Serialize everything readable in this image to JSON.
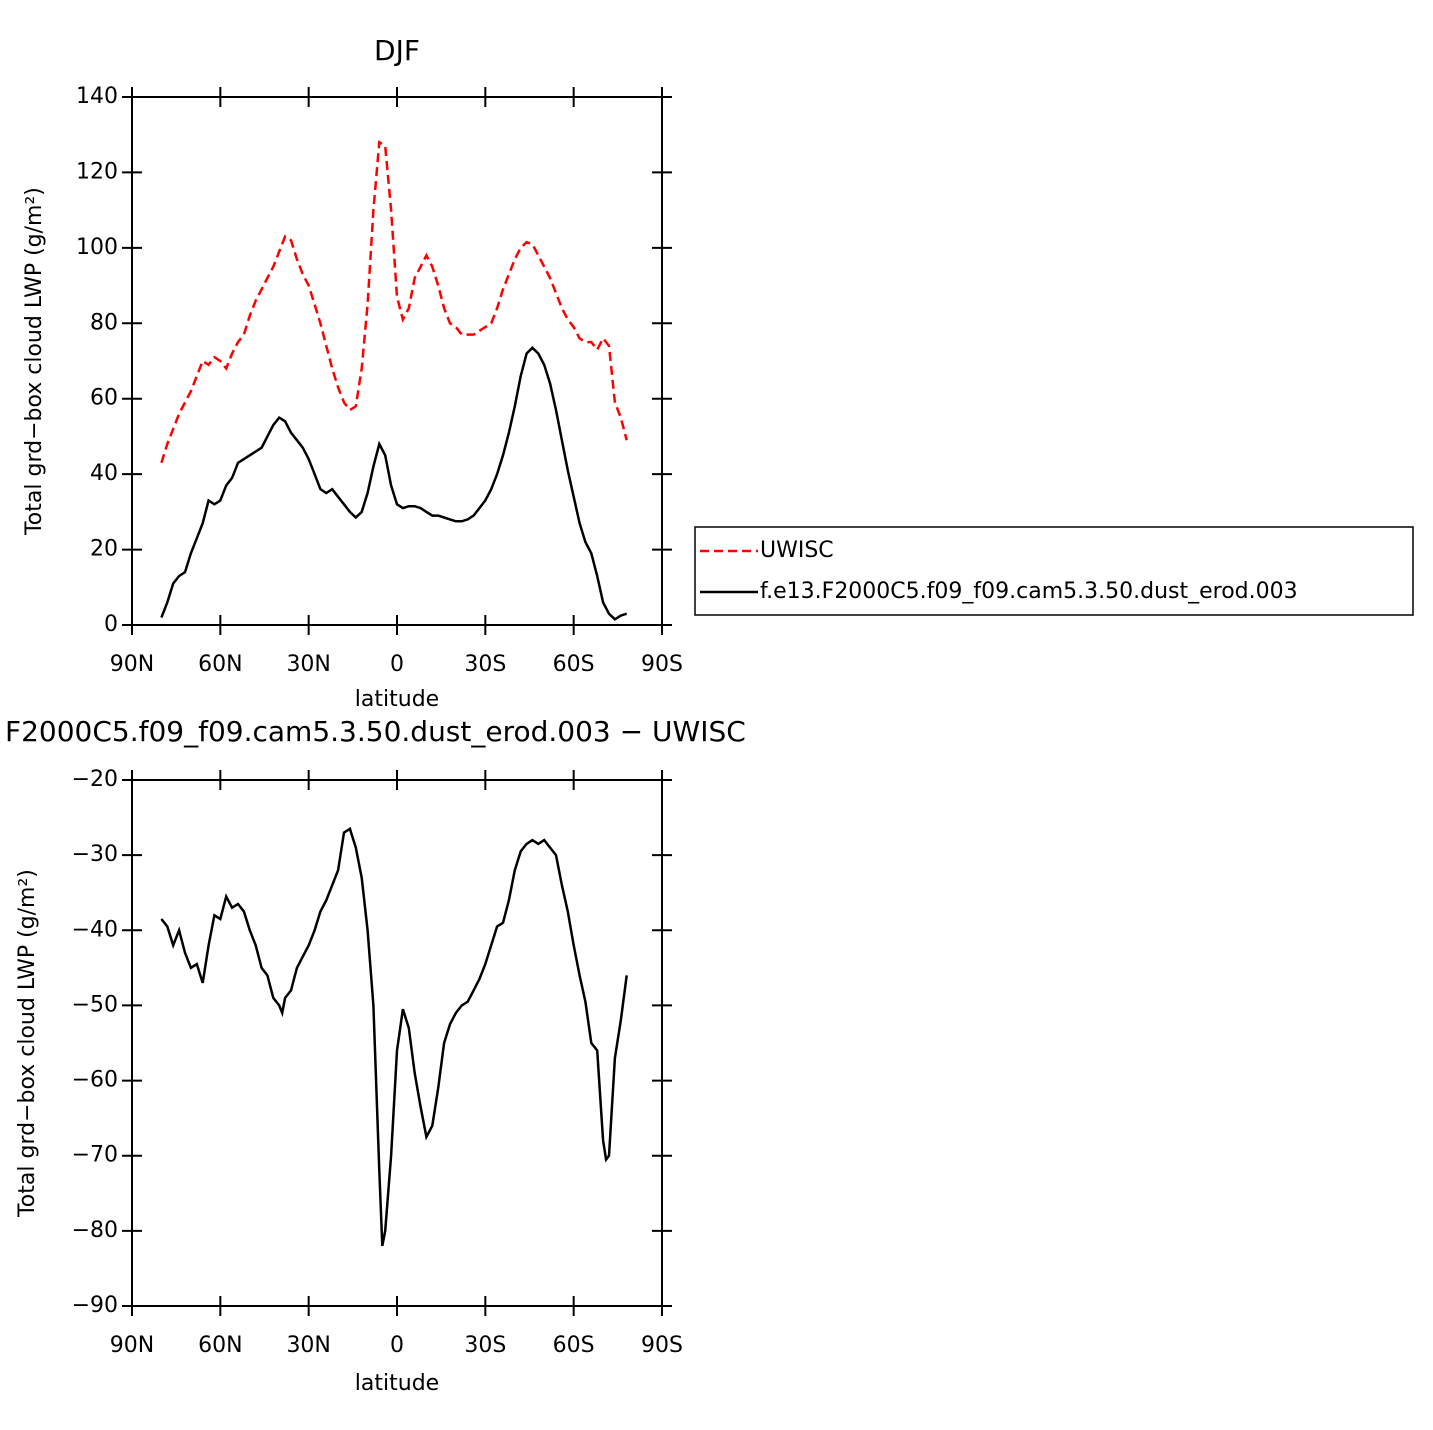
{
  "chart_data": [
    {
      "type": "line",
      "title": "DJF",
      "xlabel": "latitude",
      "ylabel": "Total grd−box cloud LWP (g/m²)",
      "xlim": [
        90,
        -90
      ],
      "xticks": [
        {
          "value": 90,
          "label": "90N"
        },
        {
          "value": 60,
          "label": "60N"
        },
        {
          "value": 30,
          "label": "30N"
        },
        0,
        {
          "value": -30,
          "label": "30S"
        },
        {
          "value": -60,
          "label": "60S"
        },
        {
          "value": -90,
          "label": "90S"
        }
      ],
      "ylim": [
        0,
        140
      ],
      "yticks": [
        0,
        20,
        40,
        60,
        80,
        100,
        120,
        140
      ],
      "x": [
        80,
        78,
        76,
        74,
        72,
        70,
        68,
        66,
        64,
        62,
        60,
        58,
        56,
        54,
        52,
        50,
        48,
        46,
        44,
        42,
        40,
        38,
        36,
        34,
        32,
        30,
        28,
        26,
        24,
        22,
        20,
        18,
        16,
        14,
        12,
        10,
        8,
        6,
        4,
        2,
        0,
        -2,
        -4,
        -6,
        -8,
        -10,
        -12,
        -14,
        -16,
        -18,
        -20,
        -22,
        -24,
        -26,
        -28,
        -30,
        -32,
        -34,
        -36,
        -38,
        -40,
        -42,
        -44,
        -46,
        -48,
        -50,
        -52,
        -54,
        -56,
        -58,
        -60,
        -62,
        -64,
        -66,
        -68,
        -70,
        -72,
        -74,
        -76,
        -78
      ],
      "series": [
        {
          "name": "UWISC",
          "color": "#ff0000",
          "dash": true,
          "values": [
            43,
            48,
            52,
            56,
            59,
            62,
            66,
            70,
            69,
            71,
            70,
            68,
            72,
            75,
            77,
            82,
            86,
            89,
            92,
            95,
            99,
            103,
            102,
            97,
            93,
            90,
            85,
            80,
            74,
            68,
            63,
            59,
            57,
            58,
            68,
            85,
            110,
            128,
            127,
            110,
            87,
            81,
            84,
            92,
            95,
            98,
            95,
            90,
            84,
            80,
            79,
            77,
            77,
            77,
            78,
            79,
            80,
            84,
            89,
            93,
            97,
            100,
            101.5,
            101,
            98,
            95,
            92,
            88,
            84,
            81,
            79,
            76,
            75,
            75,
            73,
            76,
            74,
            59,
            55,
            49
          ]
        },
        {
          "name": "f.e13.F2000C5.f09_f09.cam5.3.50.dust_erod.003",
          "color": "#000000",
          "dash": false,
          "values": [
            2,
            6,
            11,
            13,
            14,
            19,
            23,
            27,
            33,
            32,
            33,
            37,
            39,
            43,
            44,
            45,
            46,
            47,
            50,
            53,
            55,
            54,
            51,
            49,
            47,
            44,
            40,
            36,
            35,
            36,
            34,
            32,
            30,
            28.5,
            30,
            35,
            42,
            48,
            45,
            37,
            32,
            31,
            31.5,
            31.5,
            31,
            30,
            29,
            29,
            28.5,
            28,
            27.5,
            27.5,
            28,
            29,
            31,
            33,
            36,
            40,
            45,
            51,
            58,
            66,
            72,
            73.5,
            72,
            69,
            64,
            57,
            49,
            41,
            34,
            27,
            22,
            19,
            13,
            6,
            3,
            1.5,
            2.5,
            3
          ]
        }
      ]
    },
    {
      "type": "line",
      "title": "F2000C5.f09_f09.cam5.3.50.dust_erod.003 − UWISC",
      "xlabel": "latitude",
      "ylabel": "Total grd−box cloud LWP (g/m²)",
      "xlim": [
        90,
        -90
      ],
      "xticks": [
        {
          "value": 90,
          "label": "90N"
        },
        {
          "value": 60,
          "label": "60N"
        },
        {
          "value": 30,
          "label": "30N"
        },
        0,
        {
          "value": -30,
          "label": "30S"
        },
        {
          "value": -60,
          "label": "60S"
        },
        {
          "value": -90,
          "label": "90S"
        }
      ],
      "ylim": [
        -90,
        -20
      ],
      "yticks": [
        {
          "value": -90,
          "label": "−90"
        },
        {
          "value": -80,
          "label": "−80"
        },
        {
          "value": -70,
          "label": "−70"
        },
        {
          "value": -60,
          "label": "−60"
        },
        {
          "value": -50,
          "label": "−50"
        },
        {
          "value": -40,
          "label": "−40"
        },
        {
          "value": -30,
          "label": "−30"
        },
        {
          "value": -20,
          "label": "−20"
        }
      ],
      "x": [
        80,
        78,
        76,
        74,
        72,
        70,
        68,
        66,
        64,
        62,
        60,
        58,
        56,
        54,
        52,
        50,
        48,
        46,
        44,
        42,
        40,
        39,
        38,
        36,
        34,
        32,
        30,
        28,
        26,
        24,
        22,
        20,
        18,
        16,
        14,
        12,
        10,
        8,
        6,
        5,
        4,
        2,
        0,
        -2,
        -4,
        -6,
        -8,
        -10,
        -12,
        -14,
        -16,
        -18,
        -20,
        -22,
        -24,
        -26,
        -28,
        -30,
        -32,
        -34,
        -36,
        -38,
        -40,
        -42,
        -44,
        -46,
        -48,
        -50,
        -52,
        -54,
        -56,
        -58,
        -60,
        -62,
        -64,
        -66,
        -68,
        -70,
        -71,
        -72,
        -74,
        -76,
        -78
      ],
      "series": [
        {
          "name": null,
          "color": "#000000",
          "dash": false,
          "values": [
            -38.5,
            -39.5,
            -42,
            -40,
            -43,
            -45,
            -44.5,
            -47,
            -42,
            -38,
            -38.5,
            -35.5,
            -37,
            -36.5,
            -37.5,
            -40,
            -42,
            -45,
            -46,
            -49,
            -50,
            -51,
            -49,
            -48,
            -45,
            -43.5,
            -42,
            -40,
            -37.5,
            -36,
            -34,
            -32,
            -27,
            -26.5,
            -29,
            -33,
            -40,
            -50,
            -72,
            -82,
            -80,
            -70,
            -56,
            -50.5,
            -53,
            -59,
            -63.5,
            -67.5,
            -66,
            -61,
            -55,
            -52.5,
            -51,
            -50,
            -49.5,
            -48,
            -46.5,
            -44.5,
            -42,
            -39.5,
            -39,
            -36,
            -32,
            -29.5,
            -28.5,
            -28,
            -28.5,
            -28,
            -29,
            -30,
            -34,
            -37.5,
            -42,
            -46,
            -49.5,
            -55,
            -56,
            -68,
            -70.5,
            -70,
            -57,
            -52,
            -46
          ]
        }
      ]
    }
  ]
}
